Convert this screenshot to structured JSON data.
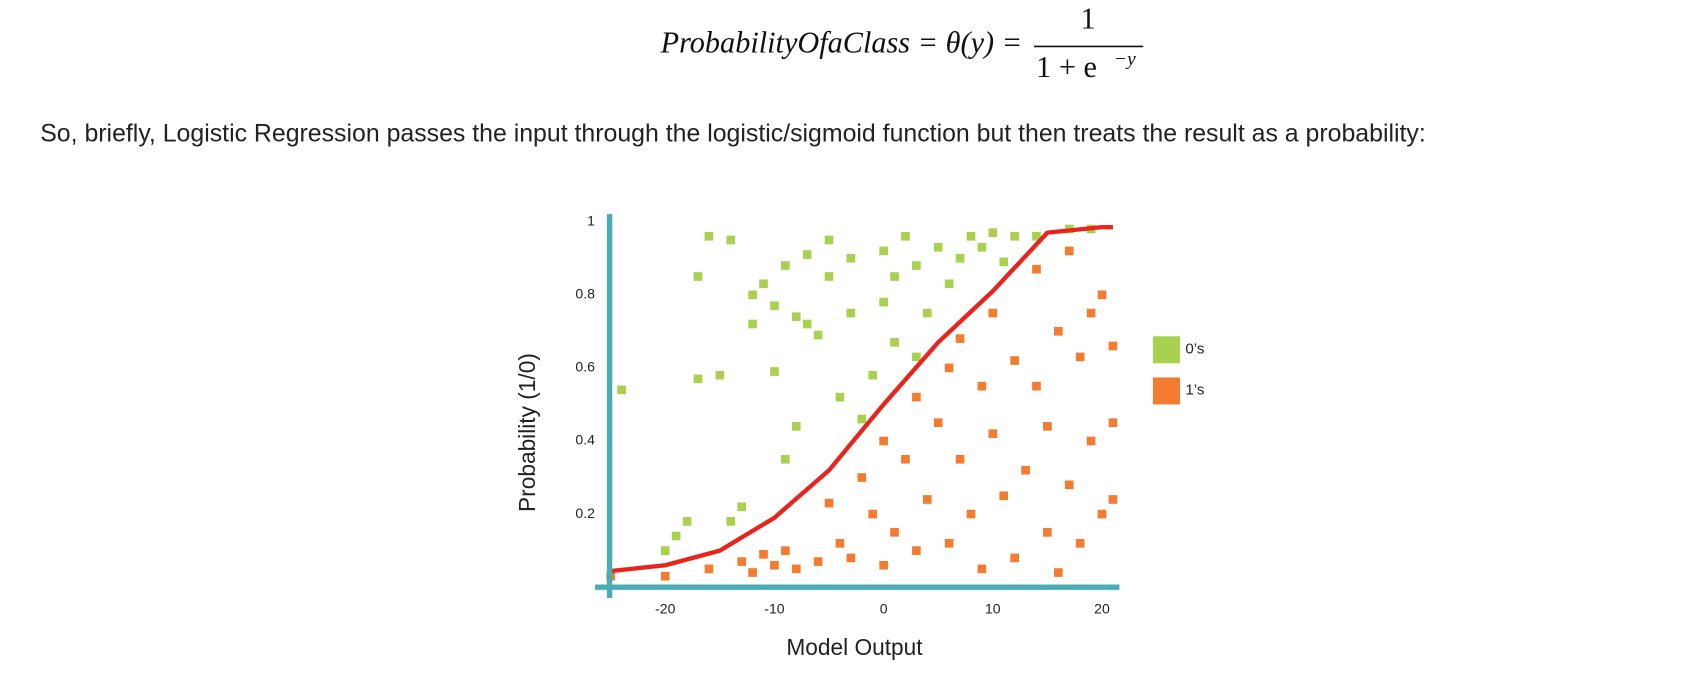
{
  "equation": {
    "lhs": "ProbabilityOfaClass = θ(y) =",
    "numerator": "1",
    "denominator": "1 + e",
    "exponent": "−y"
  },
  "paragraph": "So, briefly, Logistic Regression passes the input through the logistic/sigmoid function but then treats the result as a probability:",
  "chart_data": {
    "type": "scatter",
    "x_label": "Model Output",
    "y_label": "Probability (1/0)",
    "xlim": [
      -25,
      21
    ],
    "ylim": [
      0,
      1
    ],
    "xticks": [
      -20,
      -10,
      0,
      10,
      20
    ],
    "yticks": [
      0.2,
      0.4,
      0.6,
      0.8,
      1
    ],
    "axis_color": "#4aacb4",
    "curve": {
      "color": "#e8241c",
      "x": [
        -25,
        -20,
        -15,
        -10,
        -5,
        0,
        5,
        10,
        15,
        20,
        21
      ],
      "y": [
        0.044,
        0.06,
        0.1,
        0.19,
        0.32,
        0.5,
        0.67,
        0.81,
        0.97,
        0.985,
        0.985
      ]
    },
    "series": [
      {
        "name": "0’s",
        "color": "#a8d14f",
        "x": [
          -24,
          -20,
          -19,
          -18,
          -17,
          -17,
          -16,
          -15,
          -14,
          -14,
          -13,
          -12,
          -12,
          -11,
          -10,
          -10,
          -9,
          -9,
          -8,
          -8,
          -7,
          -7,
          -6,
          -5,
          -5,
          -4,
          -3,
          -3,
          -2,
          -1,
          0,
          0,
          1,
          1,
          2,
          3,
          3,
          4,
          5,
          6,
          7,
          8,
          9,
          10,
          11,
          12,
          14,
          17,
          19
        ],
        "y": [
          0.54,
          0.1,
          0.14,
          0.18,
          0.57,
          0.85,
          0.96,
          0.58,
          0.95,
          0.18,
          0.22,
          0.72,
          0.8,
          0.83,
          0.77,
          0.59,
          0.88,
          0.35,
          0.74,
          0.44,
          0.72,
          0.91,
          0.69,
          0.95,
          0.85,
          0.52,
          0.75,
          0.9,
          0.46,
          0.58,
          0.92,
          0.78,
          0.67,
          0.85,
          0.96,
          0.88,
          0.63,
          0.75,
          0.93,
          0.83,
          0.9,
          0.96,
          0.93,
          0.97,
          0.89,
          0.96,
          0.96,
          0.98,
          0.98
        ]
      },
      {
        "name": "1’s",
        "color": "#f47c30",
        "x": [
          -25,
          -20,
          -16,
          -13,
          -12,
          -11,
          -10,
          -9,
          -8,
          -6,
          -5,
          -4,
          -3,
          -2,
          -1,
          0,
          0,
          1,
          2,
          3,
          3,
          4,
          5,
          6,
          6,
          7,
          7,
          8,
          9,
          9,
          10,
          10,
          11,
          12,
          12,
          13,
          14,
          14,
          15,
          15,
          16,
          16,
          17,
          17,
          18,
          18,
          19,
          19,
          20,
          20,
          21,
          21,
          21
        ],
        "y": [
          0.03,
          0.03,
          0.05,
          0.07,
          0.04,
          0.09,
          0.06,
          0.1,
          0.05,
          0.07,
          0.23,
          0.12,
          0.08,
          0.3,
          0.2,
          0.4,
          0.06,
          0.15,
          0.35,
          0.52,
          0.1,
          0.24,
          0.45,
          0.6,
          0.12,
          0.35,
          0.68,
          0.2,
          0.55,
          0.05,
          0.42,
          0.75,
          0.25,
          0.62,
          0.08,
          0.32,
          0.55,
          0.87,
          0.15,
          0.44,
          0.7,
          0.04,
          0.28,
          0.92,
          0.63,
          0.12,
          0.75,
          0.4,
          0.2,
          0.8,
          0.45,
          0.24,
          0.66
        ]
      }
    ]
  }
}
